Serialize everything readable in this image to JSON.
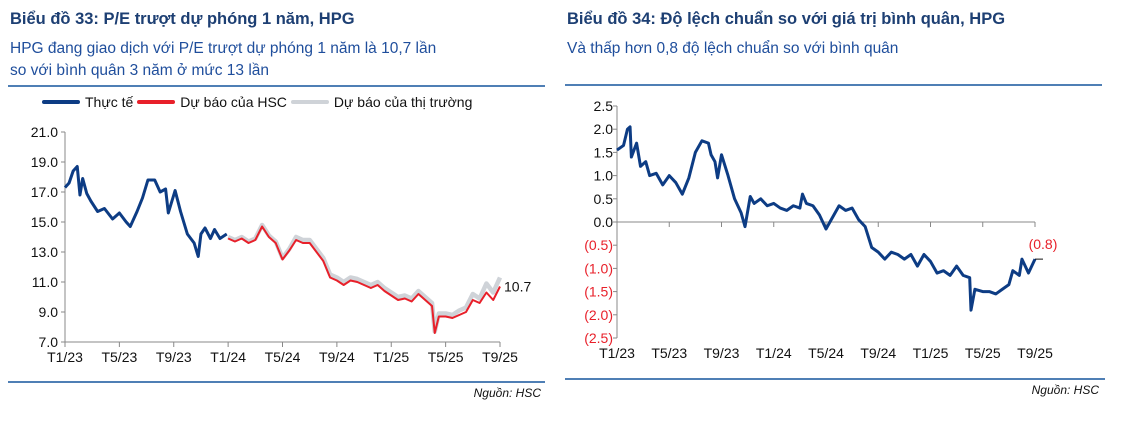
{
  "left": {
    "title": "Biểu đồ 33: P/E trượt dự phóng 1 năm, HPG",
    "subtitle_line1": "HPG đang giao dịch với P/E trượt dự phóng 1 năm là 10,7 lần",
    "subtitle_line2": "so với bình quân 3 năm ở mức 13 lần",
    "source": "Nguồn: HSC"
  },
  "right": {
    "title": "Biểu đồ 34: Độ lệch chuẩn so với giá trị bình quân, HPG",
    "subtitle_line1": "Và thấp hơn 0,8 độ lệch chuẩn so với bình quân",
    "source": "Nguồn: HSC"
  },
  "colors": {
    "actual": "#0d3c84",
    "hsc": "#e8202a",
    "market": "#cfd3d8",
    "negative": "#e8202a",
    "accent": "#1d3f73"
  },
  "chart_data": [
    {
      "type": "line",
      "title": "P/E trượt dự phóng 1 năm, HPG",
      "x_unit": "months since T1/23",
      "x_ticks": [
        {
          "v": 0,
          "label": "T1/23"
        },
        {
          "v": 4,
          "label": "T5/23"
        },
        {
          "v": 8,
          "label": "T9/23"
        },
        {
          "v": 12,
          "label": "T1/24"
        },
        {
          "v": 16,
          "label": "T5/24"
        },
        {
          "v": 20,
          "label": "T9/24"
        },
        {
          "v": 24,
          "label": "T1/25"
        },
        {
          "v": 28,
          "label": "T5/25"
        },
        {
          "v": 32,
          "label": "T9/25"
        }
      ],
      "ylim": [
        7,
        21
      ],
      "y_ticks": [
        "7.0",
        "9.0",
        "11.0",
        "13.0",
        "15.0",
        "17.0",
        "19.0",
        "21.0"
      ],
      "legend": [
        "Thực tế",
        "Dự báo của HSC",
        "Dự báo của thị trường"
      ],
      "end_label": "10.7",
      "series": [
        {
          "name": "Dự báo của thị trường",
          "x": [
            12,
            12.5,
            13,
            13.5,
            14,
            14.5,
            15,
            15.5,
            16,
            16.5,
            17,
            17.5,
            18,
            18.5,
            19,
            19.5,
            20,
            20.5,
            21,
            21.5,
            22,
            22.5,
            23,
            23.5,
            24,
            24.5,
            25,
            25.5,
            26,
            26.5,
            27,
            27.2,
            27.5,
            28,
            28.5,
            29,
            29.5,
            30,
            30.5,
            31,
            31.5,
            32
          ],
          "y": [
            14.0,
            13.8,
            14.0,
            13.7,
            13.9,
            14.8,
            14.1,
            13.7,
            12.6,
            13.2,
            14.0,
            13.8,
            13.8,
            13.2,
            12.6,
            11.5,
            11.3,
            11.0,
            11.3,
            11.2,
            11.0,
            10.8,
            11.0,
            10.6,
            10.3,
            10.0,
            10.1,
            9.9,
            10.4,
            10.0,
            9.6,
            7.7,
            8.9,
            8.9,
            8.8,
            9.1,
            9.3,
            10.2,
            9.9,
            10.9,
            10.3,
            11.3
          ]
        },
        {
          "name": "Dự báo của HSC",
          "x": [
            12,
            12.5,
            13,
            13.5,
            14,
            14.5,
            15,
            15.5,
            16,
            16.5,
            17,
            17.5,
            18,
            18.5,
            19,
            19.5,
            20,
            20.5,
            21,
            21.5,
            22,
            22.5,
            23,
            23.5,
            24,
            24.5,
            25,
            25.5,
            26,
            26.5,
            27,
            27.2,
            27.5,
            28,
            28.5,
            29,
            29.5,
            30,
            30.5,
            31,
            31.5,
            32
          ],
          "y": [
            13.9,
            13.7,
            13.9,
            13.6,
            13.8,
            14.7,
            14.0,
            13.6,
            12.5,
            13.1,
            13.8,
            13.6,
            13.6,
            13.0,
            12.4,
            11.3,
            11.1,
            10.8,
            11.1,
            11.0,
            10.8,
            10.6,
            10.8,
            10.4,
            10.1,
            9.8,
            9.9,
            9.7,
            10.2,
            9.8,
            9.4,
            7.6,
            8.7,
            8.7,
            8.6,
            8.8,
            9.0,
            9.8,
            9.6,
            10.3,
            9.8,
            10.7
          ]
        },
        {
          "name": "Thực tế",
          "x": [
            0,
            0.3,
            0.6,
            0.9,
            1.1,
            1.3,
            1.6,
            1.9,
            2.4,
            2.9,
            3.5,
            4.0,
            4.5,
            4.8,
            5.3,
            5.7,
            6.1,
            6.6,
            7.0,
            7.4,
            7.6,
            8.1,
            8.5,
            9.0,
            9.5,
            9.8,
            10.0,
            10.3,
            10.7,
            11.0,
            11.4,
            11.9
          ],
          "y": [
            17.3,
            17.6,
            18.4,
            18.7,
            16.8,
            17.9,
            16.9,
            16.4,
            15.7,
            15.9,
            15.2,
            15.6,
            15.0,
            14.7,
            15.7,
            16.6,
            17.8,
            17.8,
            17.0,
            17.2,
            15.6,
            17.1,
            15.7,
            14.2,
            13.6,
            12.7,
            14.2,
            14.6,
            13.9,
            14.5,
            13.9,
            14.2
          ]
        }
      ]
    },
    {
      "type": "line",
      "title": "Độ lệch chuẩn so với giá trị bình quân, HPG",
      "x_unit": "months since T1/23",
      "x_ticks": [
        {
          "v": 0,
          "label": "T1/23"
        },
        {
          "v": 4,
          "label": "T5/23"
        },
        {
          "v": 8,
          "label": "T9/23"
        },
        {
          "v": 12,
          "label": "T1/24"
        },
        {
          "v": 16,
          "label": "T5/24"
        },
        {
          "v": 20,
          "label": "T9/24"
        },
        {
          "v": 24,
          "label": "T1/25"
        },
        {
          "v": 28,
          "label": "T5/25"
        },
        {
          "v": 32,
          "label": "T9/25"
        }
      ],
      "ylim": [
        -2.5,
        2.5
      ],
      "y_ticks": [
        {
          "v": 2.5,
          "label": "2.5"
        },
        {
          "v": 2,
          "label": "2.0"
        },
        {
          "v": 1.5,
          "label": "1.5"
        },
        {
          "v": 1,
          "label": "1.0"
        },
        {
          "v": 0.5,
          "label": "0.5"
        },
        {
          "v": 0,
          "label": "0.0"
        },
        {
          "v": -0.5,
          "label": "(0.5)"
        },
        {
          "v": -1,
          "label": "(1.0)"
        },
        {
          "v": -1.5,
          "label": "(1.5)"
        },
        {
          "v": -2,
          "label": "(2.0)"
        },
        {
          "v": -2.5,
          "label": "(2.5)"
        }
      ],
      "end_label": "(0.8)",
      "series": [
        {
          "name": "Độ lệch chuẩn",
          "x": [
            0,
            0.5,
            0.8,
            1,
            1.1,
            1.5,
            1.8,
            2.2,
            2.5,
            3,
            3.5,
            4,
            4.5,
            5,
            5.5,
            6,
            6.5,
            7,
            7.2,
            7.5,
            7.7,
            8,
            8.5,
            9,
            9.5,
            9.8,
            10.2,
            10.5,
            11,
            11.5,
            12,
            12.5,
            13,
            13.5,
            14,
            14.2,
            14.5,
            15,
            15.5,
            16,
            16.5,
            17,
            17.5,
            18,
            18.5,
            19,
            19.5,
            20,
            20.5,
            21,
            21.5,
            22,
            22.5,
            23,
            23.5,
            24,
            24.5,
            25,
            25.5,
            26,
            26.5,
            27,
            27.1,
            27.4,
            28,
            28.5,
            29,
            29.5,
            30,
            30.3,
            30.8,
            31,
            31.5,
            32
          ],
          "y": [
            1.55,
            1.65,
            2.0,
            2.05,
            1.4,
            1.7,
            1.2,
            1.3,
            1.0,
            1.05,
            0.8,
            1.0,
            0.85,
            0.6,
            0.95,
            1.5,
            1.75,
            1.7,
            1.45,
            1.3,
            0.95,
            1.45,
            1.0,
            0.5,
            0.2,
            -0.1,
            0.55,
            0.4,
            0.5,
            0.35,
            0.4,
            0.3,
            0.25,
            0.35,
            0.3,
            0.6,
            0.4,
            0.35,
            0.15,
            -0.15,
            0.1,
            0.35,
            0.25,
            0.3,
            0.05,
            -0.1,
            -0.55,
            -0.65,
            -0.8,
            -0.65,
            -0.7,
            -0.8,
            -0.7,
            -0.95,
            -0.7,
            -0.85,
            -1.1,
            -1.05,
            -1.15,
            -0.95,
            -1.15,
            -1.2,
            -1.9,
            -1.45,
            -1.5,
            -1.5,
            -1.55,
            -1.45,
            -1.35,
            -1.05,
            -1.15,
            -0.8,
            -1.1,
            -0.8
          ]
        }
      ]
    }
  ]
}
